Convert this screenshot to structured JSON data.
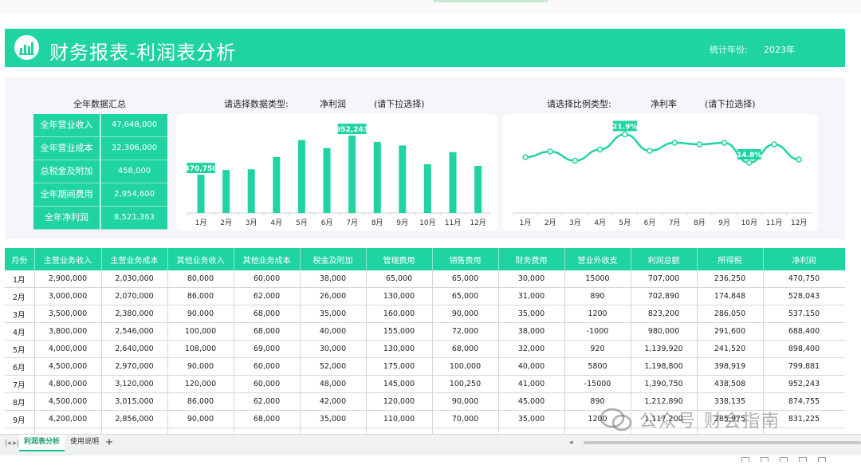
{
  "header": {
    "title": "财务报表-利润表分析",
    "year_label": "统计年份:",
    "year_value": "2023年",
    "accent": "#20d3a3"
  },
  "summary": {
    "title": "全年数据汇总",
    "rows": [
      {
        "label": "全年营业收入",
        "value": "47,648,000"
      },
      {
        "label": "全年营业成本",
        "value": "32,306,000"
      },
      {
        "label": "总税金及附加",
        "value": "458,000"
      },
      {
        "label": "全年期间费用",
        "value": "2,954,600"
      },
      {
        "label": "全年净利润",
        "value": "8,521,363"
      }
    ]
  },
  "selector_left": {
    "prompt": "请选择数据类型:",
    "value": "净利润",
    "hint": "(请下拉选择)"
  },
  "selector_right": {
    "prompt": "请选择比例类型:",
    "value": "净利率",
    "hint": "(请下拉选择)"
  },
  "chart_data": [
    {
      "type": "bar",
      "categories": [
        "1月",
        "2月",
        "3月",
        "4月",
        "5月",
        "6月",
        "7月",
        "8月",
        "9月",
        "10月",
        "11月",
        "12月"
      ],
      "values": [
        470750,
        528043,
        537150,
        688400,
        898400,
        799881,
        952243,
        874755,
        831225,
        600000,
        750000,
        580000
      ],
      "labeled_points": [
        {
          "index": 0,
          "label": "470,750"
        },
        {
          "index": 6,
          "label": "952,243"
        }
      ],
      "ylim": [
        0,
        1100000
      ],
      "color": "#20d3a3",
      "grid": false
    },
    {
      "type": "line",
      "categories": [
        "1月",
        "2月",
        "3月",
        "4月",
        "5月",
        "6月",
        "7月",
        "8月",
        "9月",
        "10月",
        "11月",
        "12月"
      ],
      "values": [
        16.2,
        17.6,
        15.3,
        18.1,
        21.9,
        17.8,
        19.8,
        19.4,
        19.8,
        14.8,
        19.4,
        15.6
      ],
      "labeled_points": [
        {
          "index": 4,
          "label": "21.9%"
        },
        {
          "index": 9,
          "label": "14.8%"
        }
      ],
      "ylim": [
        0,
        25
      ],
      "color": "#20d3a3",
      "grid": false
    }
  ],
  "table": {
    "headers": [
      "月份",
      "主营业务收入",
      "主营业务成本",
      "其他业务收入",
      "其他业务成本",
      "税金及附加",
      "管理费用",
      "销售费用",
      "财务费用",
      "营业外收支",
      "利润总额",
      "所得税",
      "净利润"
    ],
    "rows": [
      [
        "1月",
        "2,900,000",
        "2,030,000",
        "80,000",
        "60,000",
        "38,000",
        "65,000",
        "65,000",
        "30,000",
        "15000",
        "707,000",
        "236,250",
        "470,750"
      ],
      [
        "2月",
        "3,000,000",
        "2,070,000",
        "86,000",
        "62,000",
        "26,000",
        "130,000",
        "65,000",
        "31,000",
        "890",
        "702,890",
        "174,848",
        "528,043"
      ],
      [
        "3月",
        "3,500,000",
        "2,380,000",
        "90,000",
        "68,000",
        "35,000",
        "160,000",
        "90,000",
        "35,000",
        "1200",
        "823,200",
        "286,050",
        "537,150"
      ],
      [
        "4月",
        "3,800,000",
        "2,546,000",
        "100,000",
        "68,000",
        "40,000",
        "155,000",
        "72,000",
        "38,000",
        "-1000",
        "980,000",
        "291,600",
        "688,400"
      ],
      [
        "5月",
        "4,000,000",
        "2,640,000",
        "108,000",
        "69,000",
        "30,000",
        "130,000",
        "68,000",
        "32,000",
        "920",
        "1,139,920",
        "241,520",
        "898,400"
      ],
      [
        "6月",
        "4,500,000",
        "2,970,000",
        "90,000",
        "60,000",
        "52,000",
        "175,000",
        "100,000",
        "40,000",
        "5800",
        "1,198,800",
        "398,919",
        "799,881"
      ],
      [
        "7月",
        "4,800,000",
        "3,120,000",
        "120,000",
        "60,000",
        "48,000",
        "145,000",
        "100,250",
        "41,000",
        "-15000",
        "1,390,750",
        "438,508",
        "952,243"
      ],
      [
        "8月",
        "4,500,000",
        "3,015,000",
        "86,000",
        "62,000",
        "42,000",
        "120,000",
        "90,000",
        "45,000",
        "890",
        "1,212,890",
        "338,135",
        "874,755"
      ],
      [
        "9月",
        "4,200,000",
        "2,856,000",
        "90,000",
        "68,000",
        "35,000",
        "110,000",
        "70,000",
        "35,000",
        "1200",
        "1,117,200",
        "285,975",
        "831,225"
      ],
      [
        "",
        "",
        "",
        "",
        "",
        "",
        "",
        "",
        "",
        "",
        "",
        "",
        ""
      ]
    ]
  },
  "watermark": {
    "text": "公众号 财会指南"
  },
  "statusbar": {
    "nav": "|◂  ▸|",
    "sheets": [
      "利润表分析",
      "使用说明"
    ],
    "add": "+",
    "scroll_left": "◂"
  }
}
